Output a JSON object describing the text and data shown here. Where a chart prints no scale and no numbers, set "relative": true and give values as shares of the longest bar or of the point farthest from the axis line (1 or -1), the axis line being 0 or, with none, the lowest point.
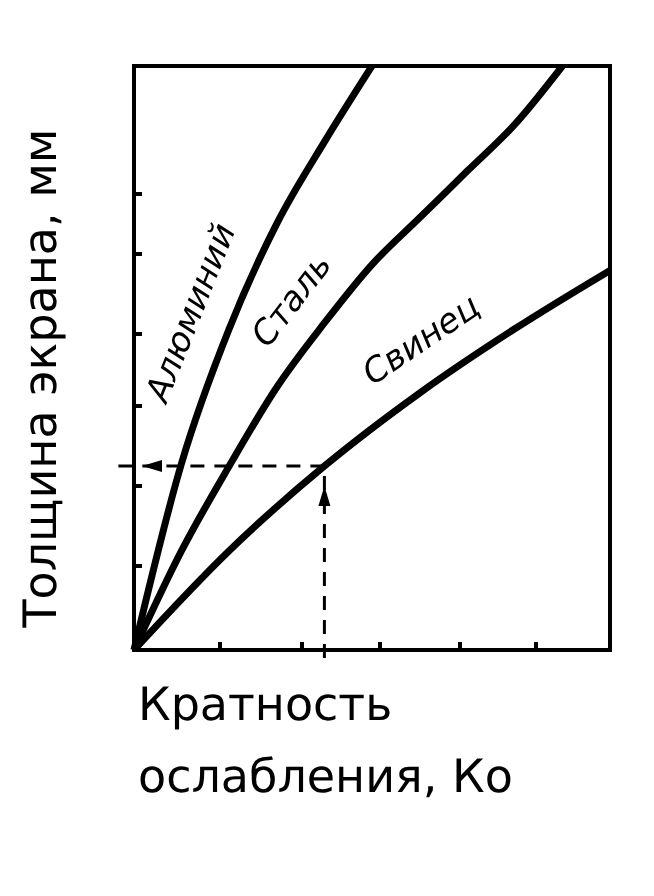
{
  "chart_data": {
    "type": "line",
    "relative": true,
    "xlabel": "Кратность ослабления, Ко",
    "ylabel": "Толщина экрана, мм",
    "categories": [
      null,
      null,
      null,
      null,
      null,
      null,
      null,
      null,
      null,
      null,
      null,
      null,
      null,
      null,
      null,
      null,
      null,
      null,
      null,
      null,
      null
    ],
    "series": [
      {
        "name": "Алюминий",
        "color": "#000000",
        "values": [
          0,
          null,
          0.32,
          null,
          0.55,
          null,
          0.73,
          null,
          0.87,
          null,
          1.0,
          null,
          null,
          null,
          null,
          null,
          null,
          null,
          null,
          null,
          null
        ]
      },
      {
        "name": "Сталь",
        "color": "#000000",
        "values": [
          0,
          null,
          0.17,
          null,
          0.315,
          null,
          0.45,
          null,
          0.56,
          null,
          0.66,
          null,
          0.74,
          null,
          0.82,
          null,
          0.9,
          null,
          1.0,
          null,
          null
        ]
      },
      {
        "name": "Свинец",
        "color": "#000000",
        "values": [
          0,
          null,
          null,
          null,
          0.17,
          null,
          null,
          null,
          0.315,
          null,
          null,
          null,
          0.44,
          null,
          null,
          null,
          0.55,
          null,
          null,
          null,
          0.65
        ]
      }
    ],
    "grid": false,
    "marker": "none",
    "line_style": "solid"
  }
}
